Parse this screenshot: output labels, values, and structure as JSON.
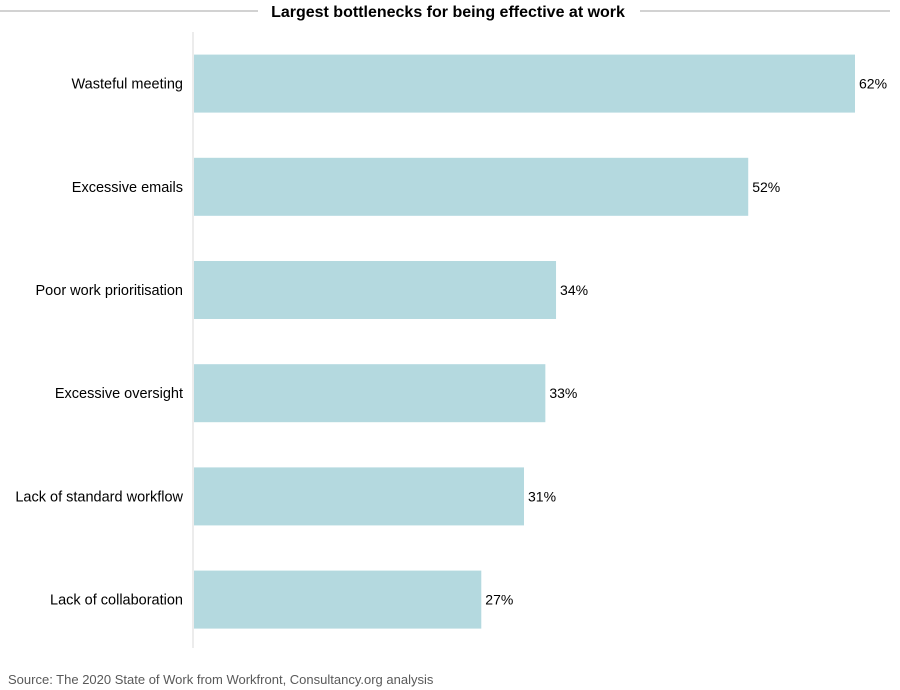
{
  "chart_data": {
    "type": "bar",
    "orientation": "horizontal",
    "title": "Largest bottlenecks for being effective at work",
    "categories": [
      "Wasteful meeting",
      "Excessive emails",
      "Poor work prioritisation",
      "Excessive oversight",
      "Lack of standard workflow",
      "Lack of collaboration"
    ],
    "values": [
      62,
      52,
      34,
      33,
      31,
      27
    ],
    "value_labels": [
      "62%",
      "52%",
      "34%",
      "33%",
      "31%",
      "27%"
    ],
    "unit": "%",
    "xlim": [
      0,
      62
    ],
    "grid": false,
    "bar_color": "#b4d9df",
    "source": "Source: The 2020 State of Work from Workfront, Consultancy.org analysis"
  }
}
